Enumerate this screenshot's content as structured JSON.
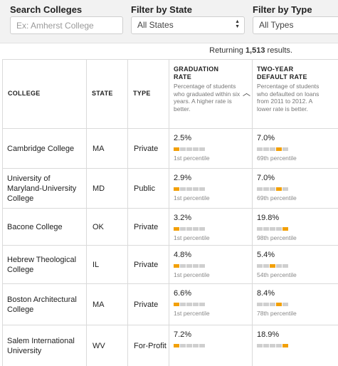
{
  "filters": {
    "search_label": "Search Colleges",
    "search_placeholder": "Ex: Amherst College",
    "state_label": "Filter by State",
    "state_value": "All States",
    "type_label": "Filter by Type",
    "type_value": "All Types"
  },
  "results": {
    "prefix": "Returning",
    "count": "1,513",
    "suffix": "results."
  },
  "table": {
    "headers": {
      "college": "COLLEGE",
      "state": "STATE",
      "type": "TYPE",
      "grad_title_1": "GRADUATION",
      "grad_title_2": "RATE",
      "grad_desc": "Percentage of students who graduated within six years. A higher rate is better.",
      "default_title_1": "TWO-YEAR",
      "default_title_2": "DEFAULT RATE",
      "default_desc": "Percentage of students who defaulted on loans from 2011 to 2012. A lower rate is better."
    },
    "colors": {
      "bar_on": "#f2a007",
      "bar_off": "#cfcfcf"
    },
    "rows": [
      {
        "college": "Cambridge College",
        "state": "MA",
        "type": "Private",
        "grad": "2.5%",
        "grad_pct": "1st percentile",
        "grad_seg": 0,
        "def": "7.0%",
        "def_pct": "69th percentile",
        "def_seg": 3
      },
      {
        "college": "University of Maryland-University College",
        "state": "MD",
        "type": "Public",
        "grad": "2.9%",
        "grad_pct": "1st percentile",
        "grad_seg": 0,
        "def": "7.0%",
        "def_pct": "69th percentile",
        "def_seg": 3
      },
      {
        "college": "Bacone College",
        "state": "OK",
        "type": "Private",
        "grad": "3.2%",
        "grad_pct": "1st percentile",
        "grad_seg": 0,
        "def": "19.8%",
        "def_pct": "98th percentile",
        "def_seg": 4
      },
      {
        "college": "Hebrew Theological College",
        "state": "IL",
        "type": "Private",
        "grad": "4.8%",
        "grad_pct": "1st percentile",
        "grad_seg": 0,
        "def": "5.4%",
        "def_pct": "54th percentile",
        "def_seg": 2
      },
      {
        "college": "Boston Architectural College",
        "state": "MA",
        "type": "Private",
        "grad": "6.6%",
        "grad_pct": "1st percentile",
        "grad_seg": 0,
        "def": "8.4%",
        "def_pct": "78th percentile",
        "def_seg": 3
      },
      {
        "college": "Salem International University",
        "state": "WV",
        "type": "For-Profit",
        "grad": "7.2%",
        "grad_pct": "",
        "grad_seg": 0,
        "def": "18.9%",
        "def_pct": "",
        "def_seg": 4
      }
    ]
  }
}
